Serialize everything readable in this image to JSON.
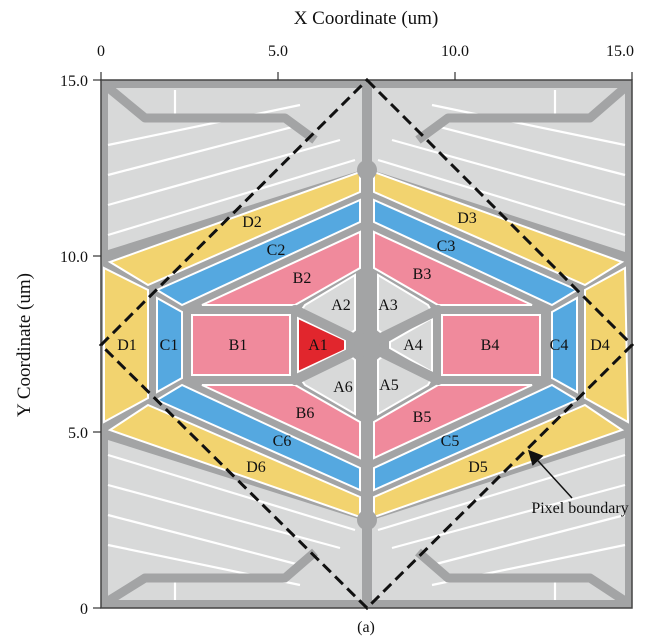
{
  "x_axis": {
    "title": "X Coordinate (um)",
    "ticks": [
      "0",
      "5.0",
      "10.0",
      "15.0"
    ]
  },
  "y_axis": {
    "title": "Y Coordinate (um)",
    "ticks": [
      "15.0",
      "10.0",
      "5.0",
      "0"
    ]
  },
  "segments": {
    "A": [
      "A1",
      "A2",
      "A3",
      "A4",
      "A5",
      "A6"
    ],
    "B": [
      "B1",
      "B2",
      "B3",
      "B4",
      "B5",
      "B6"
    ],
    "C": [
      "C1",
      "C2",
      "C3",
      "C4",
      "C5",
      "C6"
    ],
    "D": [
      "D1",
      "D2",
      "D3",
      "D4",
      "D5",
      "D6"
    ]
  },
  "annotation": "Pixel boundary",
  "caption": "(a)",
  "colors": {
    "background_cell": "#d8d9d9",
    "outline": "#a3a4a5",
    "d_ring": "#f2d36f",
    "c_ring": "#55a8e0",
    "b_ring": "#f08a9c",
    "a_center": "#d8d9d9",
    "a1_highlight": "#e1262d",
    "boundary": "#111111"
  }
}
